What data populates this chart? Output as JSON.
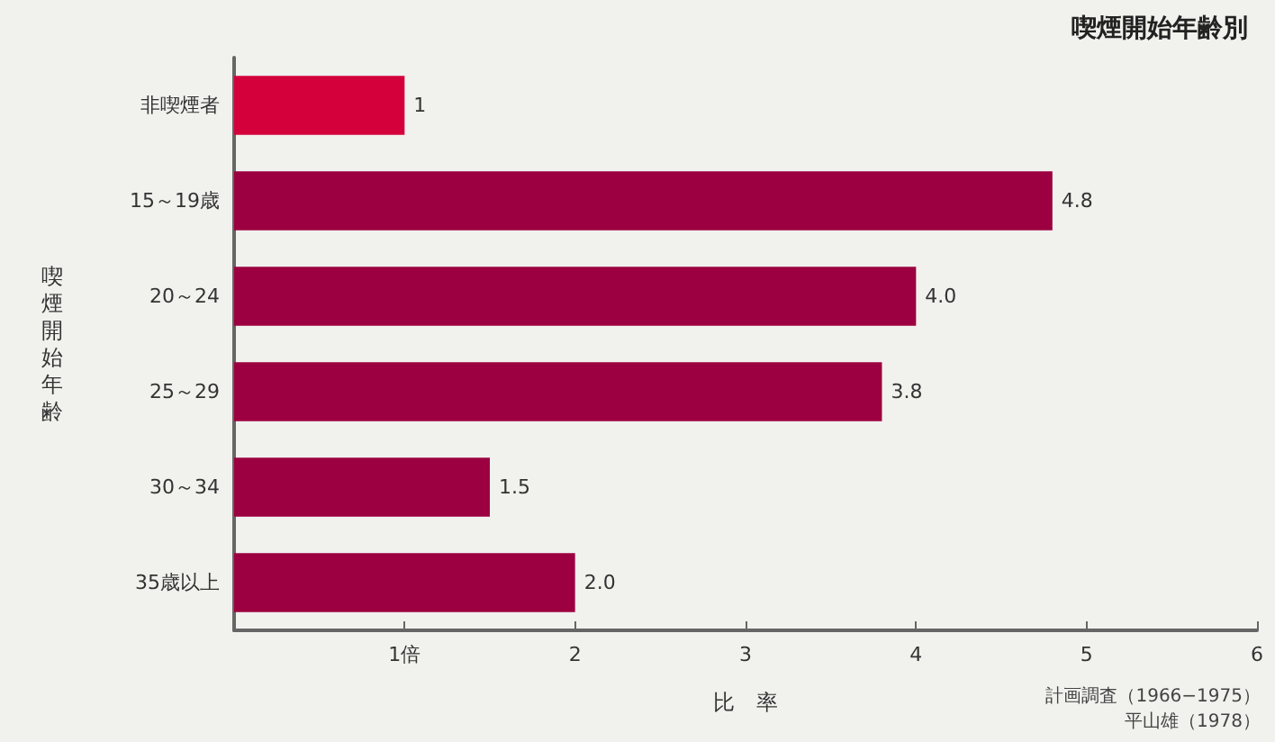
{
  "chart_data": {
    "type": "bar",
    "orientation": "horizontal",
    "title": "喫煙開始年齢別",
    "xlabel": "比　率",
    "ylabel": "喫煙開始年齢",
    "categories": [
      "非喫煙者",
      "15～19歳",
      "20～24",
      "25～29",
      "30～34",
      "35歳以上"
    ],
    "values": [
      1,
      4.8,
      4.0,
      3.8,
      1.5,
      2.0
    ],
    "colors": [
      "#d4003c",
      "#9c0040",
      "#9c0040",
      "#9c0040",
      "#9c0040",
      "#9c0040"
    ],
    "value_labels": [
      "1",
      "4.8",
      "4.0",
      "3.8",
      "1.5",
      "2.0"
    ],
    "xlim": [
      0,
      6
    ],
    "xticks": [
      {
        "value": 1,
        "label": "1倍"
      },
      2,
      3,
      4,
      5,
      6
    ],
    "grid": false,
    "annotations": [
      "計画調査（1966−1975）",
      "平山雄（1978）"
    ]
  }
}
